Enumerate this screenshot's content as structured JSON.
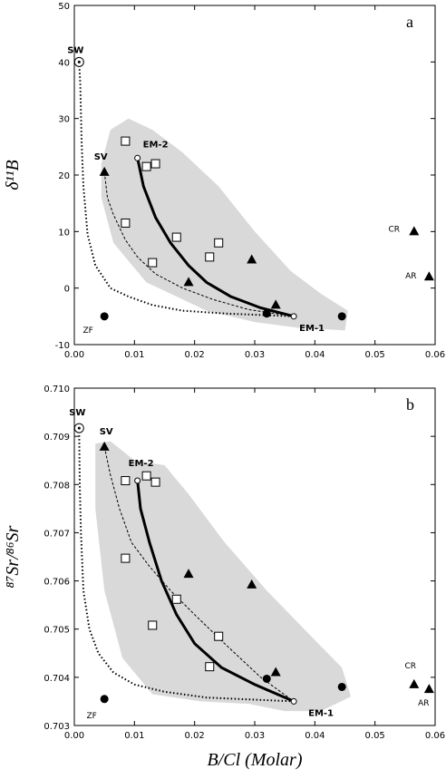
{
  "chart_data": [
    {
      "type": "scatter",
      "panel_label": "a",
      "ylabel": "δ¹¹B",
      "xlim": [
        0,
        0.06
      ],
      "ylim": [
        -10,
        50
      ],
      "xticks": [
        0,
        0.01,
        0.02,
        0.03,
        0.04,
        0.05,
        0.06
      ],
      "xtick_labels": [
        "0.00",
        "0.01",
        "0.02",
        "0.03",
        "0.04",
        "0.05",
        "0.06"
      ],
      "yticks": [
        -10,
        0,
        10,
        20,
        30,
        40,
        50
      ],
      "ytick_labels": [
        "-10",
        "0",
        "10",
        "20",
        "30",
        "40",
        "50"
      ],
      "shaded_region": [
        [
          0.0045,
          22
        ],
        [
          0.006,
          28
        ],
        [
          0.009,
          30
        ],
        [
          0.013,
          28
        ],
        [
          0.018,
          24
        ],
        [
          0.024,
          18
        ],
        [
          0.03,
          10
        ],
        [
          0.036,
          3
        ],
        [
          0.041,
          -1
        ],
        [
          0.0455,
          -4
        ],
        [
          0.045,
          -7.5
        ],
        [
          0.037,
          -7
        ],
        [
          0.03,
          -6
        ],
        [
          0.022,
          -4
        ],
        [
          0.012,
          1
        ],
        [
          0.0065,
          8
        ],
        [
          0.0045,
          16
        ]
      ],
      "squares": [
        [
          0.0085,
          26
        ],
        [
          0.012,
          21.5
        ],
        [
          0.0135,
          22
        ],
        [
          0.0085,
          11.5
        ],
        [
          0.013,
          4.5
        ],
        [
          0.017,
          9
        ],
        [
          0.0225,
          5.5
        ],
        [
          0.024,
          8
        ]
      ],
      "triangles": [
        [
          0.005,
          20.5
        ],
        [
          0.019,
          1
        ],
        [
          0.0295,
          5
        ],
        [
          0.0335,
          -3
        ],
        [
          0.0565,
          10
        ],
        [
          0.059,
          2
        ]
      ],
      "circles": [
        [
          0.005,
          -5
        ],
        [
          0.032,
          -4.5
        ],
        [
          0.0445,
          -5
        ]
      ],
      "open_circles": [
        [
          0.0105,
          23
        ],
        [
          0.0365,
          -5
        ]
      ],
      "sw_point": [
        0.0008,
        40
      ],
      "curve_em_thick": [
        [
          0.0105,
          23
        ],
        [
          0.0115,
          18
        ],
        [
          0.0135,
          12.5
        ],
        [
          0.016,
          8
        ],
        [
          0.019,
          4
        ],
        [
          0.022,
          1
        ],
        [
          0.026,
          -1.5
        ],
        [
          0.031,
          -3.5
        ],
        [
          0.0365,
          -5
        ]
      ],
      "curve_sv_dashed": [
        [
          0.005,
          20.5
        ],
        [
          0.0055,
          16
        ],
        [
          0.0065,
          13
        ],
        [
          0.0085,
          8.5
        ],
        [
          0.0105,
          5.5
        ],
        [
          0.0135,
          2.5
        ],
        [
          0.018,
          0
        ],
        [
          0.023,
          -2
        ],
        [
          0.029,
          -3.8
        ],
        [
          0.0365,
          -5
        ]
      ],
      "curve_sw_dotted": [
        [
          0.0008,
          40
        ],
        [
          0.001,
          36
        ],
        [
          0.0012,
          26
        ],
        [
          0.0015,
          18
        ],
        [
          0.0022,
          9.5
        ],
        [
          0.0035,
          4
        ],
        [
          0.006,
          0
        ],
        [
          0.009,
          -1.5
        ],
        [
          0.013,
          -3
        ],
        [
          0.018,
          -4
        ],
        [
          0.025,
          -4.5
        ],
        [
          0.0365,
          -5
        ]
      ],
      "annotations": [
        {
          "text": "SW",
          "x": 0.0008,
          "y": 40
        },
        {
          "text": "SV",
          "x": 0.005,
          "y": 20.5
        },
        {
          "text": "EM-2",
          "x": 0.0105,
          "y": 23
        },
        {
          "text": "EM-1",
          "x": 0.0365,
          "y": -5
        },
        {
          "text": "ZF",
          "x": 0.005,
          "y": -5
        },
        {
          "text": "CR",
          "x": 0.0565,
          "y": 10
        },
        {
          "text": "AR",
          "x": 0.059,
          "y": 2
        }
      ]
    },
    {
      "type": "scatter",
      "panel_label": "b",
      "ylabel": "⁸⁷Sr/⁸⁶Sr",
      "xlabel": "B/Cl (Molar)",
      "xlim": [
        0,
        0.06
      ],
      "ylim": [
        0.703,
        0.71
      ],
      "xticks": [
        0,
        0.01,
        0.02,
        0.03,
        0.04,
        0.05,
        0.06
      ],
      "xtick_labels": [
        "0.00",
        "0.01",
        "0.02",
        "0.03",
        "0.04",
        "0.05",
        "0.06"
      ],
      "yticks": [
        0.703,
        0.704,
        0.705,
        0.706,
        0.707,
        0.708,
        0.709,
        0.71
      ],
      "ytick_labels": [
        "0.703",
        "0.704",
        "0.705",
        "0.706",
        "0.707",
        "0.708",
        "0.709",
        "0.710"
      ],
      "shaded_region": [
        [
          0.0035,
          0.70885
        ],
        [
          0.006,
          0.7089
        ],
        [
          0.01,
          0.7085
        ],
        [
          0.015,
          0.7084
        ],
        [
          0.019,
          0.7078
        ],
        [
          0.025,
          0.7068
        ],
        [
          0.032,
          0.7058
        ],
        [
          0.039,
          0.7049
        ],
        [
          0.0445,
          0.7042
        ],
        [
          0.046,
          0.7036
        ],
        [
          0.041,
          0.7033
        ],
        [
          0.035,
          0.7033
        ],
        [
          0.029,
          0.70345
        ],
        [
          0.021,
          0.7035
        ],
        [
          0.013,
          0.70365
        ],
        [
          0.008,
          0.7044
        ],
        [
          0.005,
          0.7058
        ],
        [
          0.0035,
          0.7075
        ]
      ],
      "squares": [
        [
          0.0085,
          0.70808
        ],
        [
          0.012,
          0.70818
        ],
        [
          0.0135,
          0.70805
        ],
        [
          0.0085,
          0.70647
        ],
        [
          0.013,
          0.70508
        ],
        [
          0.017,
          0.70562
        ],
        [
          0.0225,
          0.70422
        ],
        [
          0.024,
          0.70485
        ]
      ],
      "triangles": [
        [
          0.005,
          0.70878
        ],
        [
          0.019,
          0.70614
        ],
        [
          0.0295,
          0.70592
        ],
        [
          0.0335,
          0.7041
        ],
        [
          0.0565,
          0.70385
        ],
        [
          0.059,
          0.70375
        ]
      ],
      "circles": [
        [
          0.005,
          0.70355
        ],
        [
          0.032,
          0.70397
        ],
        [
          0.0445,
          0.7038
        ]
      ],
      "open_circles": [
        [
          0.0105,
          0.70808
        ],
        [
          0.0365,
          0.7035
        ]
      ],
      "sw_point": [
        0.0008,
        0.70917
      ],
      "curve_em_thick": [
        [
          0.0105,
          0.70808
        ],
        [
          0.011,
          0.7075
        ],
        [
          0.0125,
          0.7068
        ],
        [
          0.0145,
          0.706
        ],
        [
          0.017,
          0.7053
        ],
        [
          0.02,
          0.7047
        ],
        [
          0.0245,
          0.7042
        ],
        [
          0.03,
          0.70385
        ],
        [
          0.0365,
          0.7035
        ]
      ],
      "curve_sv_dashed": [
        [
          0.005,
          0.70878
        ],
        [
          0.006,
          0.7082
        ],
        [
          0.0075,
          0.7075
        ],
        [
          0.0095,
          0.7068
        ],
        [
          0.0125,
          0.7063
        ],
        [
          0.016,
          0.7058
        ],
        [
          0.02,
          0.7053
        ],
        [
          0.025,
          0.7047
        ],
        [
          0.031,
          0.704
        ],
        [
          0.0365,
          0.7035
        ]
      ],
      "curve_sw_dotted": [
        [
          0.0008,
          0.70917
        ],
        [
          0.0009,
          0.708
        ],
        [
          0.0011,
          0.707
        ],
        [
          0.0015,
          0.7058
        ],
        [
          0.0025,
          0.705
        ],
        [
          0.004,
          0.7045
        ],
        [
          0.0065,
          0.7041
        ],
        [
          0.01,
          0.70385
        ],
        [
          0.015,
          0.7037
        ],
        [
          0.022,
          0.70358
        ],
        [
          0.0365,
          0.7035
        ]
      ],
      "annotations": [
        {
          "text": "SW",
          "x": 0.0008,
          "y": 0.70917
        },
        {
          "text": "SV",
          "x": 0.005,
          "y": 0.70878
        },
        {
          "text": "EM-2",
          "x": 0.0105,
          "y": 0.70808
        },
        {
          "text": "EM-1",
          "x": 0.0365,
          "y": 0.7035
        },
        {
          "text": "ZF",
          "x": 0.005,
          "y": 0.70355
        },
        {
          "text": "CR",
          "x": 0.0565,
          "y": 0.70385
        },
        {
          "text": "AR",
          "x": 0.059,
          "y": 0.70375
        }
      ]
    }
  ]
}
